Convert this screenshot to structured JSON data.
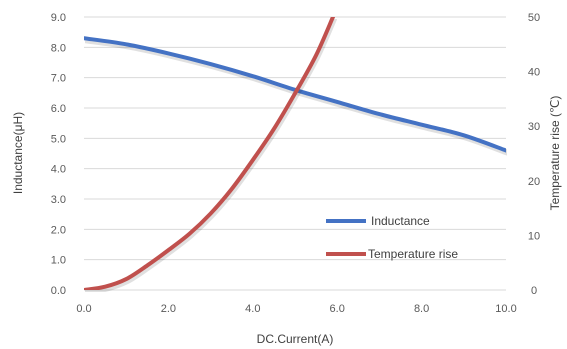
{
  "chart_data": {
    "type": "line",
    "xlabel": "DC.Current(A)",
    "ylabel_left": "Inductance(μH)",
    "ylabel_right": "Temperature rise (℃)",
    "x_ticks": [
      "0.0",
      "2.0",
      "4.0",
      "6.0",
      "8.0",
      "10.0"
    ],
    "y_left_ticks": [
      "0.0",
      "1.0",
      "2.0",
      "3.0",
      "4.0",
      "5.0",
      "6.0",
      "7.0",
      "8.0",
      "9.0"
    ],
    "y_right_ticks": [
      "0",
      "10",
      "20",
      "30",
      "40",
      "50"
    ],
    "xlim": [
      0,
      10
    ],
    "ylim_left": [
      0,
      9
    ],
    "ylim_right": [
      0,
      50
    ],
    "grid": "horizontal",
    "legend_position": "lower-right",
    "series": [
      {
        "name": "Inductance",
        "axis": "left",
        "color": "#4472C4",
        "x": [
          0,
          1,
          2,
          3,
          4,
          5,
          6,
          7,
          8,
          9,
          10
        ],
        "y": [
          8.3,
          8.1,
          7.8,
          7.45,
          7.05,
          6.6,
          6.2,
          5.8,
          5.45,
          5.1,
          4.6
        ]
      },
      {
        "name": "Temperature rise",
        "axis": "right",
        "color": "#C0504D",
        "x": [
          0,
          0.5,
          1.0,
          1.5,
          2.0,
          2.5,
          3.0,
          3.5,
          4.0,
          4.5,
          5.0,
          5.5,
          5.9
        ],
        "y": [
          0,
          0.6,
          2,
          4.5,
          7.3,
          10.3,
          14,
          18.5,
          23.8,
          29.5,
          36,
          43,
          50
        ]
      }
    ]
  }
}
